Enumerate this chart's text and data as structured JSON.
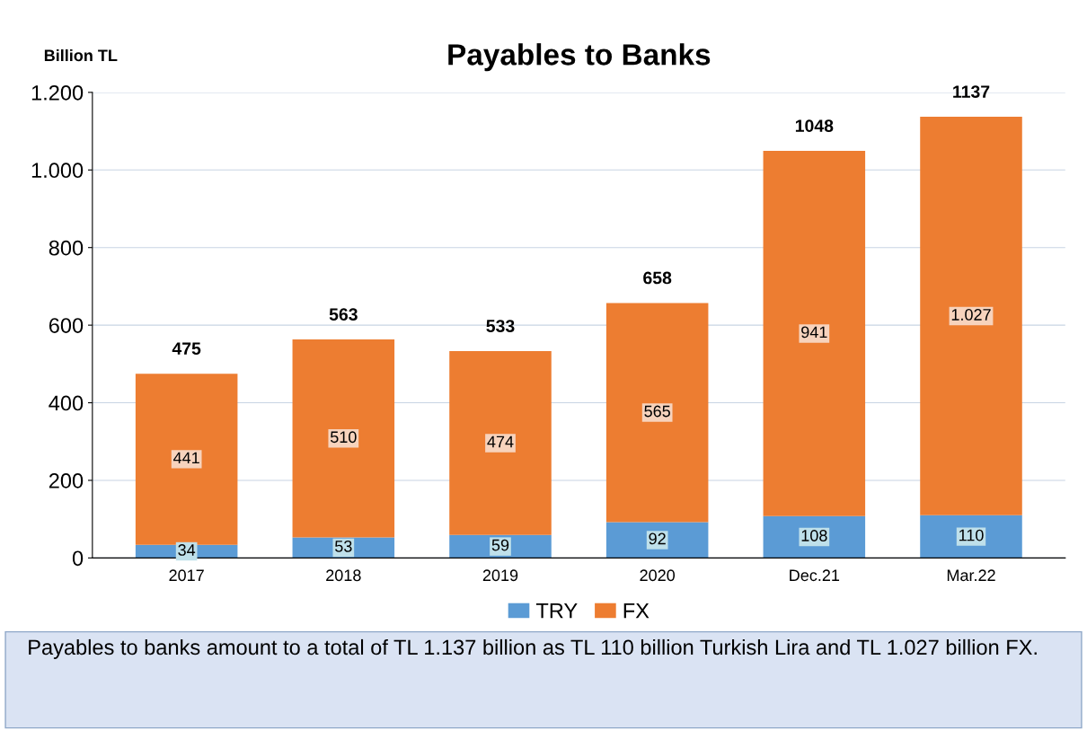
{
  "chart_data": {
    "type": "bar",
    "title": "Payables to Banks",
    "ylabel": "Billion TL",
    "stacked": true,
    "categories": [
      "2017",
      "2018",
      "2019",
      "2020",
      "Dec.21",
      "Mar.22"
    ],
    "series": [
      {
        "name": "TRY",
        "color": "#5b9bd5",
        "values": [
          34,
          53,
          59,
          92,
          108,
          110
        ],
        "value_labels": [
          "34",
          "53",
          "59",
          "92",
          "108",
          "110"
        ]
      },
      {
        "name": "FX",
        "color": "#ed7d31",
        "values": [
          441,
          510,
          474,
          565,
          941,
          1027
        ],
        "value_labels": [
          "441",
          "510",
          "474",
          "565",
          "941",
          "1.027"
        ]
      }
    ],
    "totals": [
      "475",
      "563",
      "533",
      "658",
      "1048",
      "1137"
    ],
    "ylim": [
      0,
      1200
    ],
    "yticks": [
      0,
      200,
      400,
      600,
      800,
      {
        "value": 1000,
        "label": "1.000"
      },
      {
        "value": 1200,
        "label": "1.200"
      }
    ],
    "grid": "y",
    "legend": "bottom",
    "annotations": [
      "Payables to banks amount to a total of TL 1.137 billion as TL 110 billion Turkish Lira and TL 1.027 billion FX."
    ]
  }
}
